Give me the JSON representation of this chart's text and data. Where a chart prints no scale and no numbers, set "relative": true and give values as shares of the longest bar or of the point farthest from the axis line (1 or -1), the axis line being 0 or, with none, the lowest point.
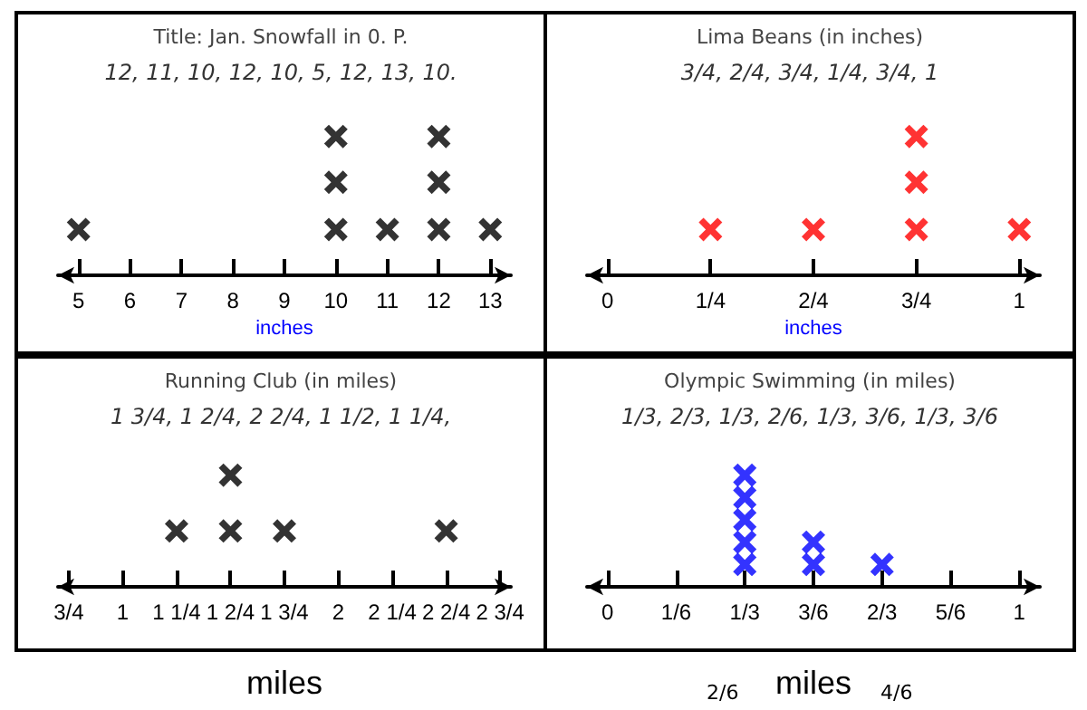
{
  "chart_data": [
    {
      "type": "scatter",
      "title": "Title: Jan. Snowfall in 0. P.",
      "subtitle": "12, 11, 10, 12, 10, 5, 12, 13, 10.",
      "xlabel": "inches",
      "relative": true,
      "marker": "cross",
      "grid": false,
      "tick_labels": "x",
      "x": [
        5,
        10,
        10,
        10,
        11,
        12,
        12,
        12,
        13
      ],
      "values": [
        0.33,
        0.33,
        0.67,
        1,
        0.33,
        0.33,
        0.67,
        1,
        0.33
      ],
      "color": "#000000",
      "xlim": [
        4.6,
        13.4
      ],
      "xticks": [
        5,
        6,
        7,
        8,
        9,
        10,
        11,
        12,
        13
      ]
    },
    {
      "type": "scatter",
      "title": "Lima Beans (in inches)",
      "subtitle": "3/4, 2/4, 3/4, 1/4, 3/4, 1",
      "xlabel": "inches",
      "relative": true,
      "marker": "cross",
      "grid": false,
      "tick_labels": "x",
      "x": [
        0.25,
        0.5,
        0.75,
        0.75,
        0.75,
        1
      ],
      "values": [
        0.33,
        0.33,
        0.33,
        0.67,
        1,
        0.33
      ],
      "color": "#ff0000",
      "xlim": [
        -0.05,
        1.05
      ],
      "xticks": [
        0,
        {
          "value": 0.25,
          "label": "1/4"
        },
        {
          "value": 0.5,
          "label": "2/4"
        },
        {
          "value": 0.75,
          "label": "3/4"
        },
        1
      ]
    },
    {
      "type": "scatter",
      "title": "Running Club (in miles)",
      "subtitle": "1 3/4, 1 2/4, 2 2/4, 1 1/2, 1 1/4,",
      "xlabel": "miles",
      "relative": true,
      "marker": "cross",
      "grid": false,
      "tick_labels": "x",
      "x": [
        1.25,
        1.5,
        1.5,
        1.75,
        2.5
      ],
      "values": [
        0.5,
        0.5,
        1,
        0.5,
        0.5
      ],
      "color": "#000000",
      "xlim": [
        0.7,
        2.8
      ],
      "xticks": [
        {
          "value": 0.75,
          "label": "3/4"
        },
        1,
        {
          "value": 1.25,
          "label": "1 1/4"
        },
        {
          "value": 1.5,
          "label": "1 2/4"
        },
        {
          "value": 1.75,
          "label": "1 3/4"
        },
        2,
        {
          "value": 2.25,
          "label": "2 1/4"
        },
        {
          "value": 2.5,
          "label": "2 2/4"
        },
        {
          "value": 2.75,
          "label": "2 3/4"
        }
      ]
    },
    {
      "type": "scatter",
      "title": "Olympic Swimming (in miles)",
      "subtitle": "1/3, 2/3, 1/3, 2/6, 1/3, 3/6, 1/3, 3/6",
      "xlabel": "miles",
      "annotations": [
        "2/6",
        "4/6"
      ],
      "relative": true,
      "marker": "cross",
      "grid": false,
      "tick_labels": "x",
      "x": [
        0.3333,
        0.3333,
        0.3333,
        0.3333,
        0.3333,
        0.5,
        0.5,
        0.6667
      ],
      "values": [
        0.2,
        0.4,
        0.6,
        0.8,
        1,
        0.2,
        0.4,
        0.2
      ],
      "color": "#0000ff",
      "xlim": [
        -0.05,
        1.05
      ],
      "xticks": [
        0,
        {
          "value": 0.1667,
          "label": "1/6"
        },
        {
          "value": 0.3333,
          "label": "1/3"
        },
        {
          "value": 0.5,
          "label": "3/6"
        },
        {
          "value": 0.6667,
          "label": "2/3"
        },
        {
          "value": 0.8333,
          "label": "5/6"
        },
        1
      ]
    }
  ]
}
